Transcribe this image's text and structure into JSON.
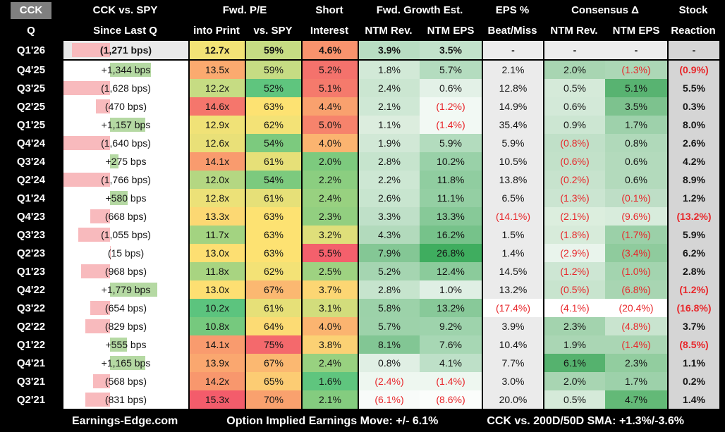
{
  "header": {
    "corner_top": "CCK",
    "corner_bottom": "Q",
    "groups": [
      {
        "label": "CCK vs. SPY",
        "sub": [
          "Since Last Q"
        ]
      },
      {
        "label": "Fwd. P/E",
        "sub": [
          "into Print",
          "vs. SPY"
        ]
      },
      {
        "label": "Short",
        "sub": [
          "Interest"
        ]
      },
      {
        "label": "Fwd. Growth Est.",
        "sub": [
          "NTM Rev.",
          "NTM EPS"
        ]
      },
      {
        "label": "EPS %",
        "sub": [
          "Beat/Miss"
        ]
      },
      {
        "label": "Consensus Δ",
        "sub": [
          "NTM Rev.",
          "NTM EPS"
        ]
      },
      {
        "label": "Stock",
        "sub": [
          "Reaction"
        ]
      }
    ]
  },
  "colors": {
    "negative_red": "#e8272b",
    "bar_negative_pink": "#f8babd",
    "bar_positive_green": "#b5d9a3",
    "beat_bg": "#ebebeb",
    "stock_bg": "#d5d5d5",
    "dash_bg": "#ececec",
    "highlight_row_bg": "#e9e9e9",
    "corner_bg": "#7f7f7f"
  },
  "chart_data": {
    "type": "table",
    "title": "CCK quarterly earnings setup heatmap",
    "columns": [
      "Q",
      "CCK vs. SPY Since Last Q",
      "Fwd. P/E into Print",
      "Fwd. P/E vs. SPY",
      "Short Interest",
      "Fwd. Growth Est. NTM Rev.",
      "Fwd. Growth Est. NTM EPS",
      "EPS % Beat/Miss",
      "Consensus Δ NTM Rev.",
      "Consensus Δ NTM EPS",
      "Stock Reaction"
    ],
    "bar_scale_max_bps": 1779,
    "rows": [
      {
        "q": "Q1'26",
        "hl": true,
        "since": {
          "label": "(1,271 bps)",
          "bps": -1271
        },
        "pe": [
          "12.7x",
          "#f2e376"
        ],
        "spy": [
          "59%",
          "#c6dc83"
        ],
        "si": [
          "4.6%",
          "#f8936d"
        ],
        "rev": [
          "3.9%",
          "#b8ddc2"
        ],
        "eps": [
          "3.5%",
          "#c2e2cb"
        ],
        "beat": [
          "-",
          "#ececec"
        ],
        "crev": [
          "-",
          "#ececec"
        ],
        "ceps": [
          "-",
          "#ececec"
        ],
        "stock": "-"
      },
      {
        "q": "Q4'25",
        "since": {
          "label": "+1,344 bps",
          "bps": 1344
        },
        "pe": [
          "13.5x",
          "#fbaa6f"
        ],
        "spy": [
          "59%",
          "#c6dc83"
        ],
        "si": [
          "5.2%",
          "#f4726c"
        ],
        "rev": [
          "1.8%",
          "#d2e9d7"
        ],
        "eps": [
          "5.7%",
          "#b4dcbf"
        ],
        "beat": [
          "2.1%",
          ""
        ],
        "crev": [
          "2.0%",
          "#a8d5b2"
        ],
        "ceps": [
          "(1.3%)",
          "#acd7b6"
        ],
        "stock": "(0.9%)"
      },
      {
        "q": "Q3'25",
        "since": {
          "label": "(1,628 bps)",
          "bps": -1628
        },
        "pe": [
          "12.2x",
          "#c6dc83"
        ],
        "spy": [
          "52%",
          "#5fc57e"
        ],
        "si": [
          "5.1%",
          "#f57a6c"
        ],
        "rev": [
          "2.4%",
          "#cbe6d1"
        ],
        "eps": [
          "0.6%",
          "#e3f1e7"
        ],
        "beat": [
          "12.8%",
          ""
        ],
        "crev": [
          "0.5%",
          "#d5ead9"
        ],
        "ceps": [
          "5.1%",
          "#58b371"
        ],
        "stock": "5.5%"
      },
      {
        "q": "Q2'25",
        "since": {
          "label": "(470 bps)",
          "bps": -470
        },
        "pe": [
          "14.6x",
          "#f5766c"
        ],
        "spy": [
          "63%",
          "#fde272"
        ],
        "si": [
          "4.4%",
          "#f9a16e"
        ],
        "rev": [
          "2.1%",
          "#cfe8d5"
        ],
        "eps": [
          "(1.2%)",
          "#f2f9f4"
        ],
        "beat": [
          "14.9%",
          ""
        ],
        "crev": [
          "0.6%",
          "#d3e9d8"
        ],
        "ceps": [
          "3.5%",
          "#7dc28e"
        ],
        "stock": "0.3%"
      },
      {
        "q": "Q1'25",
        "since": {
          "label": "+1,157 bps",
          "bps": 1157
        },
        "pe": [
          "12.9x",
          "#f0e277"
        ],
        "spy": [
          "62%",
          "#f3e276"
        ],
        "si": [
          "5.0%",
          "#f6836c"
        ],
        "rev": [
          "1.1%",
          "#dcedde"
        ],
        "eps": [
          "(1.4%)",
          "#f2f9f4"
        ],
        "beat": [
          "35.4%",
          ""
        ],
        "crev": [
          "0.9%",
          "#cce6d2"
        ],
        "ceps": [
          "1.7%",
          "#9ed1ab"
        ],
        "stock": "8.0%"
      },
      {
        "q": "Q4'24",
        "since": {
          "label": "(1,640 bps)",
          "bps": -1640
        },
        "pe": [
          "12.6x",
          "#e9e078"
        ],
        "spy": [
          "54%",
          "#7cca7e"
        ],
        "si": [
          "4.0%",
          "#fbb470"
        ],
        "rev": [
          "1.9%",
          "#d1e8d6"
        ],
        "eps": [
          "5.9%",
          "#b3dcbe"
        ],
        "beat": [
          "5.9%",
          ""
        ],
        "crev": [
          "(0.8%)",
          "#c0e0c8"
        ],
        "ceps": [
          "0.8%",
          "#b0d9ba"
        ],
        "stock": "2.6%"
      },
      {
        "q": "Q3'24",
        "since": {
          "label": "+275 bps",
          "bps": 275
        },
        "pe": [
          "14.1x",
          "#f99b6e"
        ],
        "spy": [
          "61%",
          "#e6e078"
        ],
        "si": [
          "2.0%",
          "#7dca7e"
        ],
        "rev": [
          "2.8%",
          "#c6e4cd"
        ],
        "eps": [
          "10.2%",
          "#99d1a8"
        ],
        "beat": [
          "10.5%",
          ""
        ],
        "crev": [
          "(0.6%)",
          "#c2e1c9"
        ],
        "ceps": [
          "0.6%",
          "#b3dabc"
        ],
        "stock": "4.2%"
      },
      {
        "q": "Q2'24",
        "since": {
          "label": "(1,766 bps)",
          "bps": -1766
        },
        "pe": [
          "12.0x",
          "#b4d782"
        ],
        "spy": [
          "54%",
          "#7cca7e"
        ],
        "si": [
          "2.2%",
          "#8bce80"
        ],
        "rev": [
          "2.2%",
          "#cde7d3"
        ],
        "eps": [
          "11.8%",
          "#90cda0"
        ],
        "beat": [
          "13.8%",
          ""
        ],
        "crev": [
          "(0.2%)",
          "#c7e3cd"
        ],
        "ceps": [
          "0.6%",
          "#b3dabc"
        ],
        "stock": "8.9%"
      },
      {
        "q": "Q1'24",
        "since": {
          "label": "+580 bps",
          "bps": 580
        },
        "pe": [
          "12.8x",
          "#ece178"
        ],
        "spy": [
          "61%",
          "#e6e078"
        ],
        "si": [
          "2.4%",
          "#98d180"
        ],
        "rev": [
          "2.6%",
          "#c8e5cf"
        ],
        "eps": [
          "11.1%",
          "#94cfa3"
        ],
        "beat": [
          "6.5%",
          ""
        ],
        "crev": [
          "(1.3%)",
          "#cbe5d1"
        ],
        "ceps": [
          "(0.1%)",
          "#bedec6"
        ],
        "stock": "1.2%"
      },
      {
        "q": "Q4'23",
        "since": {
          "label": "(668 bps)",
          "bps": -668
        },
        "pe": [
          "13.3x",
          "#fcd873"
        ],
        "spy": [
          "63%",
          "#fde272"
        ],
        "si": [
          "2.3%",
          "#92cf80"
        ],
        "rev": [
          "3.3%",
          "#bfe0c8"
        ],
        "eps": [
          "13.3%",
          "#87c998"
        ],
        "beat": [
          "(14.1%)",
          ""
        ],
        "crev": [
          "(2.1%)",
          "#dceede"
        ],
        "ceps": [
          "(9.6%)",
          "#d8ecdc"
        ],
        "stock": "(13.2%)"
      },
      {
        "q": "Q3'23",
        "since": {
          "label": "(1,055 bps)",
          "bps": -1055
        },
        "pe": [
          "11.7x",
          "#a3d381"
        ],
        "spy": [
          "63%",
          "#fde272"
        ],
        "si": [
          "3.2%",
          "#dfdf7a"
        ],
        "rev": [
          "4.3%",
          "#b2dabc"
        ],
        "eps": [
          "16.2%",
          "#76c28a"
        ],
        "beat": [
          "1.5%",
          ""
        ],
        "crev": [
          "(1.8%)",
          "#d7ebda"
        ],
        "ceps": [
          "(1.7%)",
          "#9bd0a8"
        ],
        "stock": "5.9%"
      },
      {
        "q": "Q2'23",
        "since": {
          "label": "(15 bps)",
          "bps": -15
        },
        "pe": [
          "13.0x",
          "#fddf72"
        ],
        "spy": [
          "63%",
          "#fde272"
        ],
        "si": [
          "5.5%",
          "#f4606c"
        ],
        "rev": [
          "7.9%",
          "#84c795"
        ],
        "eps": [
          "26.8%",
          "#3fad5f"
        ],
        "beat": [
          "1.4%",
          ""
        ],
        "crev": [
          "(2.9%)",
          "#e9f4ec"
        ],
        "ceps": [
          "(3.4%)",
          "#8fcb9d"
        ],
        "stock": "6.2%"
      },
      {
        "q": "Q1'23",
        "since": {
          "label": "(968 bps)",
          "bps": -968
        },
        "pe": [
          "11.8x",
          "#a8d481"
        ],
        "spy": [
          "62%",
          "#f3e276"
        ],
        "si": [
          "2.5%",
          "#9ed281"
        ],
        "rev": [
          "5.2%",
          "#a5d5b1"
        ],
        "eps": [
          "12.4%",
          "#8bcb9b"
        ],
        "beat": [
          "14.5%",
          ""
        ],
        "crev": [
          "(1.2%)",
          "#cde6d3"
        ],
        "ceps": [
          "(1.0%)",
          "#a3d4af"
        ],
        "stock": "2.8%"
      },
      {
        "q": "Q4'22",
        "since": {
          "label": "+1,779 bps",
          "bps": 1779
        },
        "pe": [
          "13.0x",
          "#fddf72"
        ],
        "spy": [
          "67%",
          "#fbb871"
        ],
        "si": [
          "3.7%",
          "#fcd673"
        ],
        "rev": [
          "2.8%",
          "#c6e4cd"
        ],
        "eps": [
          "1.0%",
          "#dfefe4"
        ],
        "beat": [
          "13.2%",
          ""
        ],
        "crev": [
          "(0.5%)",
          "#c8e4ce"
        ],
        "ceps": [
          "(6.8%)",
          "#a8d5b2"
        ],
        "stock": "(1.2%)"
      },
      {
        "q": "Q3'22",
        "since": {
          "label": "(654 bps)",
          "bps": -654
        },
        "pe": [
          "10.2x",
          "#5cc47e"
        ],
        "spy": [
          "61%",
          "#e6e078"
        ],
        "si": [
          "3.1%",
          "#d2dd7c"
        ],
        "rev": [
          "5.8%",
          "#9cd2a9"
        ],
        "eps": [
          "13.2%",
          "#88c999"
        ],
        "beat": [
          "(17.4%)",
          "#ffffff"
        ],
        "crev": [
          "(4.1%)",
          "#ffffff"
        ],
        "ceps": [
          "(20.4%)",
          "#ffffff"
        ],
        "stock": "(16.8%)"
      },
      {
        "q": "Q2'22",
        "since": {
          "label": "(829 bps)",
          "bps": -829
        },
        "pe": [
          "10.8x",
          "#76c97e"
        ],
        "spy": [
          "64%",
          "#fcdb74"
        ],
        "si": [
          "4.0%",
          "#fbb470"
        ],
        "rev": [
          "5.7%",
          "#9dd2aa"
        ],
        "eps": [
          "9.2%",
          "#9ed3ac"
        ],
        "beat": [
          "3.9%",
          ""
        ],
        "crev": [
          "2.3%",
          "#a3d3ae"
        ],
        "ceps": [
          "(4.8%)",
          "#c9e4cf"
        ],
        "stock": "3.7%"
      },
      {
        "q": "Q1'22",
        "since": {
          "label": "+555 bps",
          "bps": 555
        },
        "pe": [
          "14.1x",
          "#f99b6e"
        ],
        "spy": [
          "75%",
          "#f4696c"
        ],
        "si": [
          "3.8%",
          "#fbd174"
        ],
        "rev": [
          "8.1%",
          "#82c694"
        ],
        "eps": [
          "7.6%",
          "#a7d7b4"
        ],
        "beat": [
          "10.4%",
          ""
        ],
        "crev": [
          "1.9%",
          "#aad6b4"
        ],
        "ceps": [
          "(1.4%)",
          "#aad6b4"
        ],
        "stock": "(8.5%)"
      },
      {
        "q": "Q4'21",
        "since": {
          "label": "+1,165 bps",
          "bps": 1165
        },
        "pe": [
          "13.9x",
          "#faa76f"
        ],
        "spy": [
          "67%",
          "#fbb871"
        ],
        "si": [
          "2.4%",
          "#98d180"
        ],
        "rev": [
          "0.8%",
          "#e0efe4"
        ],
        "eps": [
          "4.1%",
          "#bee0c8"
        ],
        "beat": [
          "7.7%",
          ""
        ],
        "crev": [
          "6.1%",
          "#55b26e"
        ],
        "ceps": [
          "2.3%",
          "#92cd9f"
        ],
        "stock": "1.1%"
      },
      {
        "q": "Q3'21",
        "since": {
          "label": "(568 bps)",
          "bps": -568
        },
        "pe": [
          "14.2x",
          "#f8976d"
        ],
        "spy": [
          "65%",
          "#fccc73"
        ],
        "si": [
          "1.6%",
          "#5fc57e"
        ],
        "rev": [
          "(2.4%)",
          "#eef7f0"
        ],
        "eps": [
          "(1.4%)",
          "#eef7f0"
        ],
        "beat": [
          "3.0%",
          ""
        ],
        "crev": [
          "2.0%",
          "#a8d5b2"
        ],
        "ceps": [
          "1.7%",
          "#9dd1aa"
        ],
        "stock": "0.2%"
      },
      {
        "q": "Q2'21",
        "since": {
          "label": "(831 bps)",
          "bps": -831
        },
        "pe": [
          "15.3x",
          "#f35c6b"
        ],
        "spy": [
          "70%",
          "#f9a16e"
        ],
        "si": [
          "2.1%",
          "#84cc7f"
        ],
        "rev": [
          "(6.1%)",
          "#f8fbf9"
        ],
        "eps": [
          "(8.6%)",
          "#fbfdfb"
        ],
        "beat": [
          "20.0%",
          ""
        ],
        "crev": [
          "0.5%",
          "#d5ead9"
        ],
        "ceps": [
          "4.7%",
          "#63b977"
        ],
        "stock": "1.4%"
      }
    ]
  },
  "footer": {
    "site": "Earnings-Edge.com",
    "implied_move": "Option Implied Earnings Move: +/- 6.1%",
    "sma": "CCK vs. 200D/50D SMA: +1.3%/-3.6%"
  }
}
